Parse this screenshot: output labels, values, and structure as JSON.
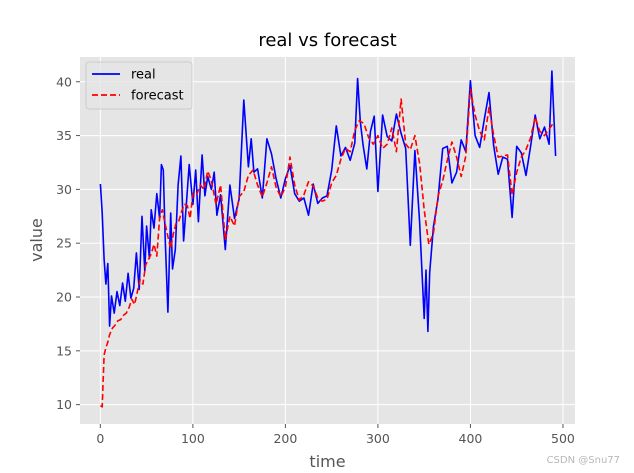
{
  "chart_data": {
    "type": "line",
    "title": "real vs forecast",
    "xlabel": "time",
    "ylabel": "value",
    "xlim": [
      -22,
      513
    ],
    "ylim": [
      8.2,
      42.3
    ],
    "xticks": [
      0,
      100,
      200,
      300,
      400,
      500
    ],
    "yticks": [
      10,
      15,
      20,
      25,
      30,
      35,
      40
    ],
    "grid": true,
    "legend_position": "top-left",
    "series": [
      {
        "name": "real",
        "color": "#0000ff",
        "style": "solid",
        "x": [
          0,
          2,
          4,
          6,
          8,
          10,
          12,
          15,
          18,
          21,
          24,
          27,
          30,
          33,
          36,
          39,
          42,
          45,
          48,
          50,
          53,
          55,
          58,
          61,
          64,
          66,
          68,
          70,
          73,
          76,
          78,
          81,
          84,
          87,
          90,
          93,
          96,
          100,
          103,
          106,
          110,
          113,
          116,
          120,
          123,
          126,
          130,
          135,
          140,
          145,
          150,
          155,
          160,
          163,
          166,
          170,
          175,
          180,
          185,
          190,
          195,
          200,
          205,
          210,
          215,
          220,
          225,
          230,
          235,
          240,
          245,
          250,
          255,
          260,
          265,
          270,
          275,
          278,
          281,
          284,
          288,
          292,
          296,
          300,
          305,
          310,
          315,
          320,
          325,
          330,
          335,
          340,
          345,
          350,
          352,
          354,
          356,
          360,
          365,
          370,
          375,
          380,
          385,
          390,
          395,
          400,
          405,
          410,
          415,
          420,
          425,
          430,
          435,
          440,
          445,
          450,
          455,
          460,
          465,
          470,
          475,
          480,
          485,
          488,
          492
        ],
        "values": [
          30.5,
          27.8,
          23.5,
          21.2,
          23.1,
          17.3,
          20.1,
          18.5,
          20.5,
          19.2,
          21.3,
          19.6,
          22.2,
          19.9,
          20.8,
          24.1,
          20.7,
          27.5,
          22.4,
          26.6,
          23.6,
          28.1,
          26.4,
          29.6,
          27.3,
          32.3,
          31.8,
          25.7,
          18.6,
          27.8,
          22.6,
          24.4,
          30.4,
          33.1,
          25.2,
          28.7,
          32.3,
          28.6,
          31.8,
          27.0,
          33.2,
          29.4,
          31.2,
          30.0,
          31.6,
          27.6,
          29.5,
          24.4,
          30.4,
          27.3,
          29.1,
          38.3,
          32.1,
          34.7,
          31.6,
          31.9,
          29.2,
          34.7,
          33.3,
          31.0,
          29.2,
          31.0,
          32.2,
          29.6,
          28.9,
          29.2,
          27.6,
          30.5,
          28.7,
          29.2,
          29.4,
          31.8,
          35.9,
          33.1,
          33.9,
          32.7,
          34.3,
          40.3,
          36.3,
          34.1,
          31.9,
          35.4,
          36.8,
          29.8,
          36.9,
          34.9,
          34.5,
          37.0,
          35.2,
          33.8,
          24.8,
          33.6,
          27.0,
          18.0,
          22.5,
          16.8,
          22.3,
          26.5,
          29.2,
          33.8,
          34.0,
          30.6,
          31.6,
          34.6,
          33.5,
          40.1,
          35.0,
          33.9,
          36.5,
          39.0,
          34.1,
          31.4,
          33.0,
          32.8,
          27.4,
          34.0,
          33.4,
          31.3,
          34.0,
          36.9,
          34.7,
          35.8,
          34.2,
          41.0,
          33.1
        ]
      },
      {
        "name": "forecast",
        "color": "#ff0000",
        "style": "dashed",
        "x": [
          0,
          2,
          4,
          6,
          8,
          10,
          13,
          16,
          19,
          22,
          25,
          28,
          31,
          34,
          37,
          40,
          43,
          46,
          49,
          52,
          55,
          58,
          61,
          64,
          67,
          70,
          73,
          76,
          79,
          82,
          85,
          88,
          91,
          94,
          97,
          100,
          104,
          108,
          112,
          116,
          120,
          125,
          130,
          135,
          140,
          145,
          150,
          155,
          160,
          165,
          170,
          175,
          180,
          185,
          190,
          195,
          200,
          205,
          210,
          215,
          220,
          225,
          230,
          235,
          240,
          245,
          250,
          255,
          260,
          265,
          270,
          275,
          280,
          285,
          290,
          295,
          300,
          305,
          310,
          315,
          320,
          325,
          330,
          335,
          340,
          345,
          350,
          355,
          360,
          365,
          370,
          375,
          380,
          385,
          390,
          395,
          400,
          405,
          410,
          415,
          420,
          425,
          430,
          435,
          440,
          445,
          450,
          455,
          460,
          465,
          470,
          475,
          480,
          485,
          490
        ],
        "values": [
          9.9,
          9.8,
          14.6,
          15.3,
          15.8,
          16.5,
          17.1,
          17.4,
          17.8,
          17.9,
          18.3,
          18.5,
          19.0,
          19.8,
          19.3,
          20.5,
          21.6,
          21.2,
          23.0,
          23.5,
          24.0,
          24.9,
          23.8,
          27.3,
          28.1,
          26.8,
          25.6,
          24.5,
          25.9,
          26.9,
          27.1,
          28.0,
          28.6,
          28.5,
          27.3,
          29.6,
          29.5,
          30.4,
          30.0,
          31.7,
          30.8,
          28.6,
          30.4,
          25.3,
          27.5,
          26.6,
          29.3,
          29.8,
          31.3,
          31.8,
          30.4,
          29.3,
          30.6,
          32.1,
          30.2,
          29.3,
          30.2,
          33.0,
          30.4,
          29.0,
          29.5,
          30.7,
          30.3,
          29.2,
          28.9,
          29.1,
          30.6,
          31.3,
          32.8,
          33.8,
          33.5,
          35.5,
          36.4,
          36.1,
          34.8,
          34.2,
          35.0,
          33.8,
          34.2,
          35.7,
          33.5,
          38.4,
          34.2,
          33.7,
          35.0,
          32.4,
          28.1,
          24.9,
          25.9,
          29.4,
          30.8,
          32.7,
          34.4,
          33.0,
          31.2,
          33.1,
          39.3,
          36.9,
          35.4,
          34.6,
          37.6,
          35.1,
          33.0,
          33.1,
          33.2,
          29.5,
          31.6,
          33.0,
          33.7,
          34.8,
          36.7,
          35.4,
          35.0,
          35.6,
          36.2
        ]
      }
    ]
  },
  "watermark": "CSDN @Snu77"
}
